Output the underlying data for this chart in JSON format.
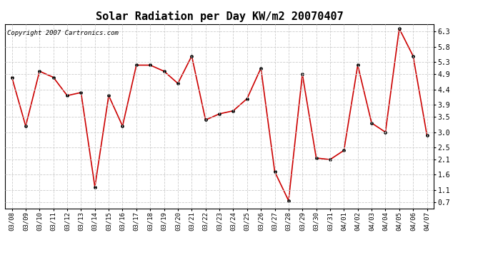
{
  "title": "Solar Radiation per Day KW/m2 20070407",
  "copyright": "Copyright 2007 Cartronics.com",
  "dates": [
    "03/08",
    "03/09",
    "03/10",
    "03/11",
    "03/12",
    "03/13",
    "03/14",
    "03/15",
    "03/16",
    "03/17",
    "03/18",
    "03/19",
    "03/20",
    "03/21",
    "03/22",
    "03/23",
    "03/24",
    "03/25",
    "03/26",
    "03/27",
    "03/28",
    "03/29",
    "03/30",
    "03/31",
    "04/01",
    "04/02",
    "04/03",
    "04/04",
    "04/05",
    "04/06",
    "04/07"
  ],
  "values": [
    4.8,
    3.2,
    5.0,
    4.8,
    4.2,
    4.3,
    1.2,
    4.2,
    3.2,
    5.2,
    5.2,
    5.0,
    4.6,
    5.5,
    3.4,
    3.6,
    3.7,
    4.1,
    5.1,
    1.7,
    0.75,
    4.9,
    2.15,
    2.1,
    2.4,
    5.2,
    3.3,
    3.0,
    6.4,
    5.5,
    2.9
  ],
  "line_color": "#cc0000",
  "marker_color": "#000000",
  "bg_color": "#ffffff",
  "grid_color": "#cccccc",
  "yticks": [
    0.7,
    1.1,
    1.6,
    2.1,
    2.5,
    3.0,
    3.5,
    3.9,
    4.4,
    4.9,
    5.3,
    5.8,
    6.3
  ],
  "ylim": [
    0.5,
    6.55
  ],
  "title_fontsize": 11,
  "copyright_fontsize": 6.5,
  "tick_fontsize": 6.5,
  "ytick_fontsize": 7
}
